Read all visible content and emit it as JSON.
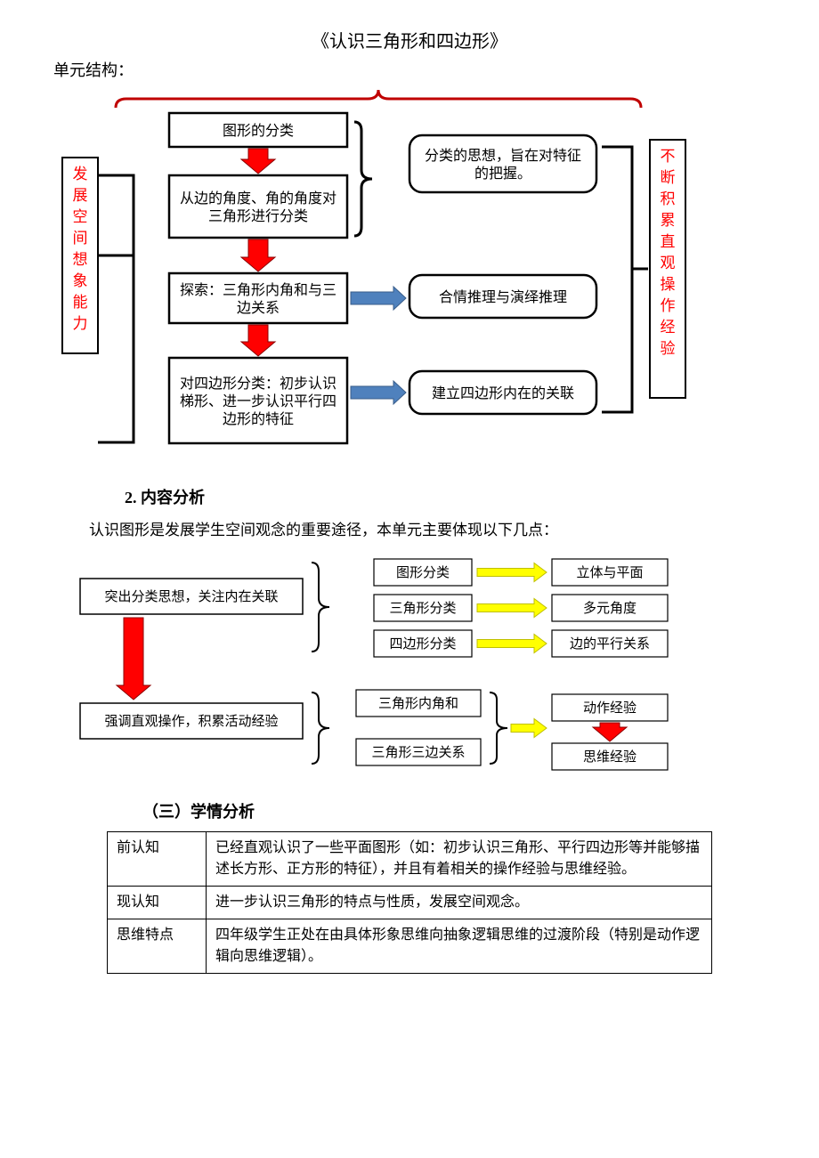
{
  "title": "《认识三角形和四边形》",
  "unit_label": "单元结构：",
  "diagram1": {
    "left_label": "发展空间想象能力",
    "right_label": "不断积累直观操作经验",
    "left_color": "#ff0000",
    "right_color": "#ff0000",
    "border_color": "#000000",
    "bracket_color": "#c00000",
    "arrow_red": "#ff0000",
    "arrow_blue_fill": "#4f81bd",
    "arrow_blue_stroke": "#385d8a",
    "chain": [
      "图形的分类",
      "从边的角度、角的角度对三角形进行分类",
      "探索：三角形内角和与三边关系",
      "对四边形分类：初步认识梯形、进一步认识平行四边形的特征"
    ],
    "side": [
      "分类的思想，旨在对特征的把握。",
      "合情推理与演绎推理",
      "建立四边形内在的关联"
    ]
  },
  "section2_head": "2. 内容分析",
  "section2_para": "认识图形是发展学生空间观念的重要途径，本单元主要体现以下几点：",
  "diagram2": {
    "border_color": "#000000",
    "brace_stroke": "#000000",
    "arrow_yellow_fill": "#ffff00",
    "arrow_yellow_stroke": "#bfbf00",
    "arrow_red": "#ff0000",
    "left": [
      "突出分类思想，关注内在关联",
      "强调直观操作，积累活动经验"
    ],
    "group1_mid": [
      "图形分类",
      "三角形分类",
      "四边形分类"
    ],
    "group1_right": [
      "立体与平面",
      "多元角度",
      "边的平行关系"
    ],
    "group2_mid": [
      "三角形内角和",
      "三角形三边关系"
    ],
    "group2_right": [
      "动作经验",
      "思维经验"
    ]
  },
  "section3_head": "（三）学情分析",
  "table": {
    "rows": [
      {
        "k": "前认知",
        "v": "已经直观认识了一些平面图形（如：初步认识三角形、平行四边形等并能够描述长方形、正方形的特征），并且有着相关的操作经验与思维经验。"
      },
      {
        "k": "现认知",
        "v": "进一步认识三角形的特点与性质，发展空间观念。"
      },
      {
        "k": "思维特点",
        "v": "四年级学生正处在由具体形象思维向抽象逻辑思维的过渡阶段（特别是动作逻辑向思维逻辑）。"
      }
    ]
  }
}
